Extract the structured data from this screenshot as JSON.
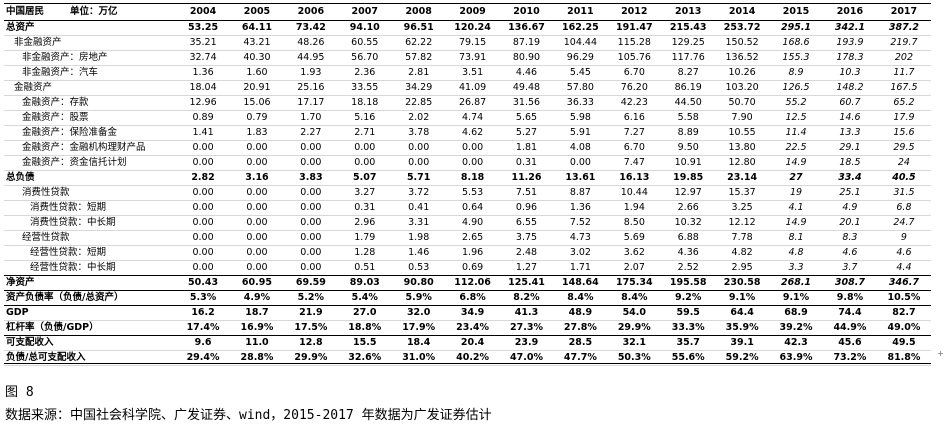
{
  "table": {
    "header_label_a": "中国居民",
    "header_label_b": "单位：万亿",
    "years": [
      "2004",
      "2005",
      "2006",
      "2007",
      "2008",
      "2009",
      "2010",
      "2011",
      "2012",
      "2013",
      "2014",
      "2015",
      "2016",
      "2017"
    ],
    "rows": [
      {
        "label": "总资产",
        "indent": 0,
        "bold": true,
        "border": "none",
        "values": [
          "53.25",
          "64.11",
          "73.42",
          "94.10",
          "96.51",
          "120.24",
          "136.67",
          "162.25",
          "191.47",
          "215.43",
          "253.72",
          "295.1",
          "342.1",
          "387.2"
        ]
      },
      {
        "label": "非金融资产",
        "indent": 1,
        "bold": false,
        "border": "none",
        "values": [
          "35.21",
          "43.21",
          "48.26",
          "60.55",
          "62.22",
          "79.15",
          "87.19",
          "104.44",
          "115.28",
          "129.25",
          "150.52",
          "168.6",
          "193.9",
          "219.7"
        ]
      },
      {
        "label": "非金融资产：房地产",
        "indent": 2,
        "bold": false,
        "border": "none",
        "values": [
          "32.74",
          "40.30",
          "44.95",
          "56.70",
          "57.82",
          "73.91",
          "80.90",
          "96.29",
          "105.76",
          "117.76",
          "136.52",
          "155.3",
          "178.3",
          "202"
        ]
      },
      {
        "label": "非金融资产：汽车",
        "indent": 2,
        "bold": false,
        "border": "none",
        "values": [
          "1.36",
          "1.60",
          "1.93",
          "2.36",
          "2.81",
          "3.51",
          "4.46",
          "5.45",
          "6.70",
          "8.27",
          "10.26",
          "8.9",
          "10.3",
          "11.7"
        ]
      },
      {
        "label": "金融资产",
        "indent": 1,
        "bold": false,
        "border": "none",
        "values": [
          "18.04",
          "20.91",
          "25.16",
          "33.55",
          "34.29",
          "41.09",
          "49.48",
          "57.80",
          "76.20",
          "86.19",
          "103.20",
          "126.5",
          "148.2",
          "167.5"
        ]
      },
      {
        "label": "金融资产：存款",
        "indent": 2,
        "bold": false,
        "border": "none",
        "values": [
          "12.96",
          "15.06",
          "17.17",
          "18.18",
          "22.85",
          "26.87",
          "31.56",
          "36.33",
          "42.23",
          "44.50",
          "50.70",
          "55.2",
          "60.7",
          "65.2"
        ]
      },
      {
        "label": "金融资产：股票",
        "indent": 2,
        "bold": false,
        "border": "none",
        "values": [
          "0.89",
          "0.79",
          "1.70",
          "5.16",
          "2.02",
          "4.74",
          "5.65",
          "5.98",
          "6.16",
          "5.58",
          "7.90",
          "12.5",
          "14.6",
          "17.9"
        ]
      },
      {
        "label": "金融资产：保险准备金",
        "indent": 2,
        "bold": false,
        "border": "none",
        "values": [
          "1.41",
          "1.83",
          "2.27",
          "2.71",
          "3.78",
          "4.62",
          "5.27",
          "5.91",
          "7.27",
          "8.89",
          "10.55",
          "11.4",
          "13.3",
          "15.6"
        ]
      },
      {
        "label": "金融资产：金融机构理财产品",
        "indent": 2,
        "bold": false,
        "border": "none",
        "values": [
          "0.00",
          "0.00",
          "0.00",
          "0.00",
          "0.00",
          "0.00",
          "1.81",
          "4.08",
          "6.70",
          "9.50",
          "13.80",
          "22.5",
          "29.1",
          "29.5"
        ]
      },
      {
        "label": "金融资产：资金信托计划",
        "indent": 2,
        "bold": false,
        "border": "none",
        "values": [
          "0.00",
          "0.00",
          "0.00",
          "0.00",
          "0.00",
          "0.00",
          "0.31",
          "0.00",
          "7.47",
          "10.91",
          "12.80",
          "14.9",
          "18.5",
          "24"
        ]
      },
      {
        "label": "总负债",
        "indent": 0,
        "bold": true,
        "border": "top",
        "values": [
          "2.82",
          "3.16",
          "3.83",
          "5.07",
          "5.71",
          "8.18",
          "11.26",
          "13.61",
          "16.13",
          "19.85",
          "23.14",
          "27",
          "33.4",
          "40.5"
        ]
      },
      {
        "label": "消费性贷款",
        "indent": 2,
        "bold": false,
        "border": "none",
        "values": [
          "0.00",
          "0.00",
          "0.00",
          "3.27",
          "3.72",
          "5.53",
          "7.51",
          "8.87",
          "10.44",
          "12.97",
          "15.37",
          "19",
          "25.1",
          "31.5"
        ]
      },
      {
        "label": "消费性贷款：短期",
        "indent": 3,
        "bold": false,
        "border": "none",
        "values": [
          "0.00",
          "0.00",
          "0.00",
          "0.31",
          "0.41",
          "0.64",
          "0.96",
          "1.36",
          "1.94",
          "2.66",
          "3.25",
          "4.1",
          "4.9",
          "6.8"
        ]
      },
      {
        "label": "消费性贷款：中长期",
        "indent": 3,
        "bold": false,
        "border": "none",
        "values": [
          "0.00",
          "0.00",
          "0.00",
          "2.96",
          "3.31",
          "4.90",
          "6.55",
          "7.52",
          "8.50",
          "10.32",
          "12.12",
          "14.9",
          "20.1",
          "24.7"
        ]
      },
      {
        "label": "经营性贷款",
        "indent": 2,
        "bold": false,
        "border": "none",
        "values": [
          "0.00",
          "0.00",
          "0.00",
          "1.79",
          "1.98",
          "2.65",
          "3.75",
          "4.73",
          "5.69",
          "6.88",
          "7.78",
          "8.1",
          "8.3",
          "9"
        ]
      },
      {
        "label": "经营性贷款：短期",
        "indent": 3,
        "bold": false,
        "border": "none",
        "values": [
          "0.00",
          "0.00",
          "0.00",
          "1.28",
          "1.46",
          "1.96",
          "2.48",
          "3.02",
          "3.62",
          "4.36",
          "4.82",
          "4.8",
          "4.6",
          "4.6"
        ]
      },
      {
        "label": "经营性贷款：中长期",
        "indent": 3,
        "bold": false,
        "border": "bottom",
        "values": [
          "0.00",
          "0.00",
          "0.00",
          "0.51",
          "0.53",
          "0.69",
          "1.27",
          "1.71",
          "2.07",
          "2.52",
          "2.95",
          "3.3",
          "3.7",
          "4.4"
        ]
      },
      {
        "label": "净资产",
        "indent": 0,
        "bold": true,
        "border": "bottom",
        "values": [
          "50.43",
          "60.95",
          "69.59",
          "89.03",
          "90.80",
          "112.06",
          "125.41",
          "148.64",
          "175.34",
          "195.58",
          "230.58",
          "268.1",
          "308.7",
          "346.7"
        ]
      },
      {
        "label": "资产负债率（负债/总资产）",
        "indent": 0,
        "bold": true,
        "border": "bottom",
        "values": [
          "5.3%",
          "4.9%",
          "5.2%",
          "5.4%",
          "5.9%",
          "6.8%",
          "8.2%",
          "8.4%",
          "8.4%",
          "9.2%",
          "9.1%",
          "9.1%",
          "9.8%",
          "10.5%"
        ]
      },
      {
        "label": "GDP",
        "indent": 0,
        "bold": true,
        "border": "none",
        "values": [
          "16.2",
          "18.7",
          "21.9",
          "27.0",
          "32.0",
          "34.9",
          "41.3",
          "48.9",
          "54.0",
          "59.5",
          "64.4",
          "68.9",
          "74.4",
          "82.7"
        ]
      },
      {
        "label": "杠杆率（负债/GDP）",
        "indent": 0,
        "bold": true,
        "border": "bottom",
        "values": [
          "17.4%",
          "16.9%",
          "17.5%",
          "18.8%",
          "17.9%",
          "23.4%",
          "27.3%",
          "27.8%",
          "29.9%",
          "33.3%",
          "35.9%",
          "39.2%",
          "44.9%",
          "49.0%"
        ]
      },
      {
        "label": "可支配收入",
        "indent": 0,
        "bold": true,
        "border": "none",
        "values": [
          "9.6",
          "11.0",
          "12.8",
          "15.5",
          "18.4",
          "20.4",
          "23.9",
          "28.5",
          "32.1",
          "35.7",
          "39.1",
          "42.3",
          "45.6",
          "49.5"
        ]
      },
      {
        "label": "负债/总可支配收入",
        "indent": 0,
        "bold": true,
        "border": "none",
        "values": [
          "29.4%",
          "28.8%",
          "29.9%",
          "32.6%",
          "31.0%",
          "40.2%",
          "47.0%",
          "47.7%",
          "50.3%",
          "55.6%",
          "59.2%",
          "63.9%",
          "73.2%",
          "81.8%"
        ]
      }
    ]
  },
  "figure_label": "图 8",
  "source_note": "数据来源：中国社会科学院、广发证券、wind，2015-2017 年数据为广发证券估计",
  "edge_mark": "+"
}
